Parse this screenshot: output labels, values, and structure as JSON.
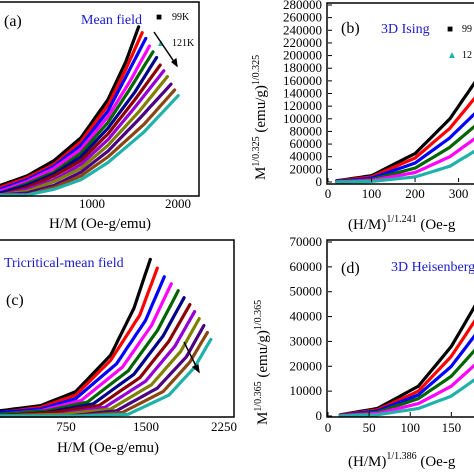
{
  "chart_data": [
    {
      "type": "scatter",
      "panel_label": "(a)",
      "title": "Mean field",
      "xlabel": "H/M (Oe-g/emu)",
      "ylabel": "",
      "x_ticks": [
        "1000",
        "2000"
      ],
      "y_ticks": [],
      "xlim": [
        0,
        2200
      ],
      "ylim": [
        0,
        100
      ],
      "legend": [
        {
          "symbol": "■",
          "name": "99K"
        },
        {
          "symbol": "▲",
          "name": "121K"
        }
      ],
      "legend_position": "top-right",
      "trend_arrow": true,
      "series": [
        {
          "color": "#000000",
          "x": [
            0,
            300,
            600,
            900,
            1200,
            1400,
            1540
          ],
          "y": [
            5,
            10,
            18,
            30,
            50,
            70,
            88
          ]
        },
        {
          "color": "#ff0000",
          "x": [
            0,
            300,
            600,
            900,
            1200,
            1400,
            1580
          ],
          "y": [
            4,
            9,
            16,
            28,
            47,
            66,
            85
          ]
        },
        {
          "color": "#0000ff",
          "x": [
            0,
            300,
            600,
            900,
            1200,
            1400,
            1620
          ],
          "y": [
            3,
            8,
            15,
            26,
            44,
            62,
            82
          ]
        },
        {
          "color": "#ff00ff",
          "x": [
            0,
            300,
            600,
            900,
            1200,
            1450,
            1660
          ],
          "y": [
            2,
            7,
            14,
            24,
            41,
            60,
            78
          ]
        },
        {
          "color": "#006400",
          "x": [
            0,
            300,
            600,
            900,
            1200,
            1450,
            1700
          ],
          "y": [
            1,
            6,
            12,
            22,
            38,
            56,
            75
          ]
        },
        {
          "color": "#00008b",
          "x": [
            0,
            300,
            600,
            900,
            1200,
            1500,
            1740
          ],
          "y": [
            1,
            5,
            11,
            20,
            35,
            54,
            72
          ]
        },
        {
          "color": "#8b0000",
          "x": [
            0,
            300,
            600,
            900,
            1200,
            1500,
            1780
          ],
          "y": [
            0,
            4,
            10,
            18,
            32,
            50,
            68
          ]
        },
        {
          "color": "#9400d3",
          "x": [
            0,
            300,
            600,
            900,
            1200,
            1500,
            1820
          ],
          "y": [
            0,
            3,
            8,
            16,
            29,
            46,
            65
          ]
        },
        {
          "color": "#808000",
          "x": [
            0,
            300,
            600,
            900,
            1200,
            1550,
            1860
          ],
          "y": [
            0,
            2,
            7,
            14,
            26,
            44,
            62
          ]
        },
        {
          "color": "#4b0082",
          "x": [
            0,
            300,
            600,
            900,
            1200,
            1550,
            1900
          ],
          "y": [
            0,
            1,
            5,
            12,
            23,
            40,
            58
          ]
        },
        {
          "color": "#8b4513",
          "x": [
            0,
            300,
            600,
            900,
            1200,
            1600,
            1940
          ],
          "y": [
            0,
            0,
            4,
            10,
            20,
            37,
            55
          ]
        },
        {
          "color": "#20b2aa",
          "x": [
            0,
            300,
            600,
            900,
            1200,
            1600,
            1980
          ],
          "y": [
            0,
            0,
            3,
            8,
            17,
            33,
            52
          ]
        }
      ]
    },
    {
      "type": "scatter",
      "panel_label": "(b)",
      "title": "3D Ising",
      "xlabel_base": "(H/M)",
      "xlabel_exp": "1/1.241",
      "xlabel_unit": " (Oe-g",
      "ylabel_base": "M",
      "ylabel_exp1": "1/0.325",
      "ylabel_mid": " (emu/g)",
      "ylabel_exp2": "1/0.325",
      "x_ticks": [
        "0",
        "100",
        "200",
        "300"
      ],
      "y_ticks": [
        "0",
        "20000",
        "40000",
        "60000",
        "80000",
        "100000",
        "120000",
        "140000",
        "160000",
        "180000",
        "200000",
        "220000",
        "240000",
        "260000",
        "280000"
      ],
      "xlim": [
        0,
        340
      ],
      "ylim": [
        0,
        280000
      ],
      "legend": [
        {
          "symbol": "■",
          "name": "99"
        },
        {
          "symbol": "▲",
          "name": "12"
        }
      ],
      "legend_position": "top-right",
      "series": [
        {
          "color": "#000000",
          "x": [
            20,
            100,
            200,
            280,
            340
          ],
          "y": [
            2000,
            10000,
            45000,
            100000,
            160000
          ]
        },
        {
          "color": "#ff0000",
          "x": [
            20,
            100,
            200,
            280,
            340
          ],
          "y": [
            1500,
            8000,
            38000,
            85000,
            135000
          ]
        },
        {
          "color": "#0000ff",
          "x": [
            20,
            100,
            200,
            280,
            340
          ],
          "y": [
            1000,
            6000,
            30000,
            70000,
            110000
          ]
        },
        {
          "color": "#006400",
          "x": [
            20,
            100,
            200,
            280,
            340
          ],
          "y": [
            500,
            4000,
            22000,
            55000,
            90000
          ]
        },
        {
          "color": "#ff00ff",
          "x": [
            20,
            100,
            200,
            280,
            340
          ],
          "y": [
            0,
            2500,
            15000,
            40000,
            70000
          ]
        },
        {
          "color": "#20b2aa",
          "x": [
            20,
            100,
            200,
            280,
            340
          ],
          "y": [
            0,
            1000,
            8000,
            25000,
            50000
          ]
        }
      ]
    },
    {
      "type": "scatter",
      "panel_label": "(c)",
      "title": "Tricritical-mean field",
      "xlabel": "H/M (Oe-g/emu)",
      "ylabel": "",
      "x_ticks": [
        "750",
        "1500",
        "2250"
      ],
      "y_ticks": [],
      "xlim": [
        250,
        2250
      ],
      "ylim": [
        0,
        100
      ],
      "trend_arrow": true,
      "series": [
        {
          "color": "#000000",
          "x": [
            250,
            600,
            900,
            1200,
            1400,
            1540
          ],
          "y": [
            3,
            6,
            14,
            35,
            62,
            90
          ]
        },
        {
          "color": "#ff0000",
          "x": [
            250,
            600,
            900,
            1200,
            1450,
            1600
          ],
          "y": [
            2,
            5,
            12,
            32,
            58,
            85
          ]
        },
        {
          "color": "#0000ff",
          "x": [
            250,
            600,
            900,
            1250,
            1500,
            1660
          ],
          "y": [
            2,
            4,
            10,
            30,
            55,
            80
          ]
        },
        {
          "color": "#ff00ff",
          "x": [
            250,
            600,
            950,
            1300,
            1550,
            1720
          ],
          "y": [
            1,
            3,
            9,
            28,
            52,
            76
          ]
        },
        {
          "color": "#006400",
          "x": [
            250,
            650,
            1000,
            1350,
            1600,
            1780
          ],
          "y": [
            1,
            3,
            8,
            26,
            49,
            72
          ]
        },
        {
          "color": "#00008b",
          "x": [
            250,
            650,
            1050,
            1400,
            1650,
            1830
          ],
          "y": [
            0,
            2,
            7,
            24,
            46,
            68
          ]
        },
        {
          "color": "#8b0000",
          "x": [
            250,
            700,
            1100,
            1450,
            1700,
            1880
          ],
          "y": [
            0,
            2,
            6,
            22,
            43,
            64
          ]
        },
        {
          "color": "#9400d3",
          "x": [
            250,
            750,
            1150,
            1500,
            1750,
            1920
          ],
          "y": [
            0,
            1,
            5,
            20,
            40,
            60
          ]
        },
        {
          "color": "#808000",
          "x": [
            250,
            800,
            1200,
            1550,
            1800,
            1960
          ],
          "y": [
            0,
            1,
            4,
            18,
            37,
            56
          ]
        },
        {
          "color": "#4b0082",
          "x": [
            250,
            850,
            1250,
            1600,
            1850,
            2000
          ],
          "y": [
            0,
            0,
            3,
            16,
            34,
            52
          ]
        },
        {
          "color": "#8b4513",
          "x": [
            250,
            900,
            1300,
            1650,
            1880,
            2030
          ],
          "y": [
            0,
            0,
            2,
            14,
            31,
            48
          ]
        },
        {
          "color": "#20b2aa",
          "x": [
            250,
            950,
            1350,
            1700,
            1920,
            2060
          ],
          "y": [
            0,
            0,
            1,
            12,
            28,
            44
          ]
        }
      ]
    },
    {
      "type": "scatter",
      "panel_label": "(d)",
      "title": "3D Heisenberg",
      "xlabel_base": "(H/M)",
      "xlabel_exp": "1/1.386",
      "xlabel_unit": " (Oe-g",
      "ylabel_base": "M",
      "ylabel_exp1": "1/0.365",
      "ylabel_mid": " (emu/g)",
      "ylabel_exp2": "1/0.365",
      "x_ticks": [
        "0",
        "50",
        "100",
        "150"
      ],
      "y_ticks": [
        "0",
        "10000",
        "20000",
        "30000",
        "40000",
        "50000",
        "60000",
        "70000"
      ],
      "xlim": [
        0,
        180
      ],
      "ylim": [
        0,
        70000
      ],
      "series": [
        {
          "color": "#000000",
          "x": [
            15,
            60,
            110,
            150,
            180
          ],
          "y": [
            500,
            3000,
            12000,
            28000,
            45000
          ]
        },
        {
          "color": "#ff0000",
          "x": [
            15,
            60,
            110,
            150,
            180
          ],
          "y": [
            400,
            2500,
            10000,
            24000,
            39000
          ]
        },
        {
          "color": "#0000ff",
          "x": [
            15,
            60,
            110,
            150,
            180
          ],
          "y": [
            300,
            2000,
            8500,
            20000,
            33000
          ]
        },
        {
          "color": "#006400",
          "x": [
            15,
            60,
            110,
            150,
            180
          ],
          "y": [
            200,
            1500,
            7000,
            16000,
            27000
          ]
        },
        {
          "color": "#ff00ff",
          "x": [
            15,
            60,
            110,
            150,
            180
          ],
          "y": [
            100,
            1000,
            5000,
            12000,
            21000
          ]
        },
        {
          "color": "#20b2aa",
          "x": [
            15,
            60,
            110,
            150,
            180
          ],
          "y": [
            0,
            500,
            3000,
            8000,
            15000
          ]
        }
      ]
    }
  ]
}
